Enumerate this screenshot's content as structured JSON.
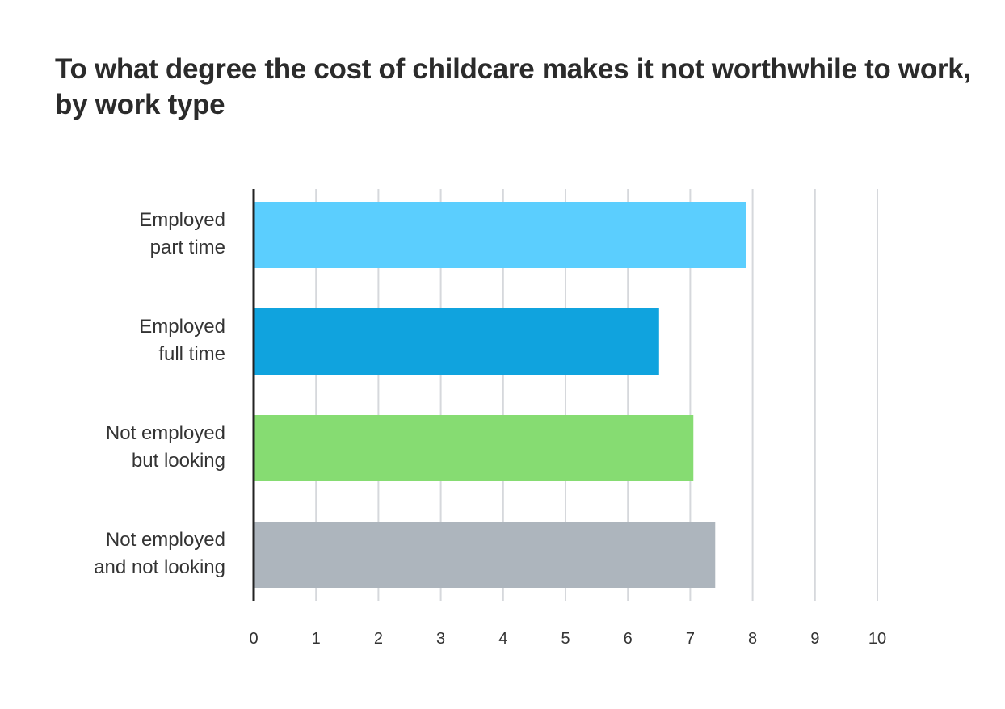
{
  "chart_data": {
    "type": "bar",
    "orientation": "horizontal",
    "title": "To what degree the cost of childcare makes it not worthwhile to work, by work type",
    "categories": [
      [
        "Employed",
        "part time"
      ],
      [
        "Employed",
        "full time"
      ],
      [
        "Not employed",
        "but looking"
      ],
      [
        "Not employed",
        "and not looking"
      ]
    ],
    "values": [
      7.9,
      6.5,
      7.05,
      7.4
    ],
    "colors": [
      "#5bcefe",
      "#10a3de",
      "#86dc72",
      "#adb5bd"
    ],
    "xlim": [
      0,
      10
    ],
    "xticks": [
      0,
      1,
      2,
      3,
      4,
      5,
      6,
      7,
      8,
      9,
      10
    ],
    "grid": true,
    "xlabel": "",
    "ylabel": ""
  }
}
